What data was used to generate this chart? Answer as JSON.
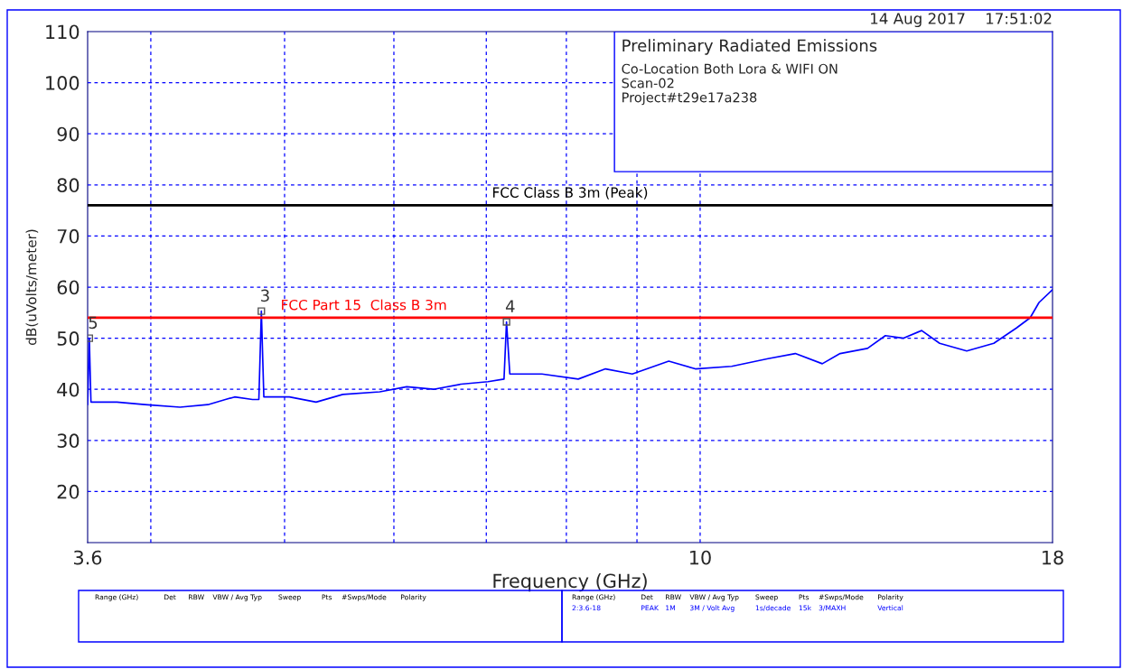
{
  "chart_data": {
    "type": "line",
    "xlabel": "Frequency (GHz)",
    "ylabel": "dB(uVolts/meter)",
    "x": [
      3.6,
      3.61,
      3.62,
      3.78,
      3.96,
      4.2,
      4.4,
      4.53,
      4.6,
      4.74,
      4.79,
      4.81,
      4.83,
      5.04,
      5.27,
      5.51,
      5.86,
      6.13,
      6.41,
      6.71,
      7.02,
      7.21,
      7.24,
      7.28,
      7.68,
      8.16,
      8.54,
      8.93,
      9.49,
      9.92,
      10.54,
      11.2,
      11.72,
      12.26,
      12.63,
      13.22,
      13.62,
      14.04,
      14.47,
      14.91,
      15.6,
      16.32,
      16.95,
      17.34,
      17.6,
      18
    ],
    "series": [
      {
        "color": "#0000ff",
        "values": [
          37,
          50,
          37.5,
          37.5,
          37,
          36.5,
          37,
          38,
          38.5,
          38,
          38,
          55.3,
          38.5,
          38.5,
          37.5,
          39,
          39.5,
          40.5,
          40,
          41,
          41.5,
          42,
          53.2,
          43,
          43,
          42,
          44,
          43,
          45.5,
          44,
          44.5,
          46,
          47,
          45,
          47,
          48,
          50.5,
          50,
          51.5,
          49,
          47.5,
          49,
          52,
          54,
          57,
          59.5
        ]
      }
    ],
    "log": "x",
    "xlim": [
      3.6,
      18
    ],
    "ylim": [
      10,
      110
    ],
    "xticks": [
      3.6,
      {
        "value": 4,
        "label": null
      },
      {
        "value": 5,
        "label": null
      },
      {
        "value": 6,
        "label": null
      },
      {
        "value": 7,
        "label": null
      },
      {
        "value": 8,
        "label": null
      },
      {
        "value": 9,
        "label": null
      },
      10,
      18
    ],
    "yticks": [
      20,
      30,
      40,
      50,
      60,
      70,
      80,
      90,
      100,
      110
    ],
    "grid": true,
    "marker": "none",
    "line_style": "solid",
    "ref_lines": [
      {
        "axis": "y",
        "value": 76,
        "label": "FCC Class B 3m (Peak)",
        "color": "#000000"
      },
      {
        "axis": "y",
        "value": 54,
        "label": "FCC Part 15  Class B 3m",
        "color": "#ff0000"
      }
    ],
    "annotations": [
      "14 Aug 2017    17:51:02",
      "Preliminary Radiated Emissions",
      "Co-Location Both Lora & WIFI ON",
      "Scan-02",
      "Project#t29e17a238",
      "Range (GHz)",
      "Det",
      "RBW",
      "VBW / Avg Typ",
      "Sweep",
      "Pts",
      "#Swps/Mode",
      "Polarity",
      "Range (GHz)",
      "Det",
      "RBW",
      "VBW / Avg Typ",
      "Sweep",
      "Pts",
      "#Swps/Mode",
      "Polarity",
      "2:3.6-18",
      "PEAK",
      "1M",
      "3M / Volt Avg",
      "1s/decade",
      "15k",
      "3/MAXH",
      "Vertical",
      {
        "text": "5",
        "x": 3.61,
        "y": 50
      },
      {
        "text": "3",
        "x": 4.81,
        "y": 55.3
      },
      {
        "text": "4",
        "x": 7.24,
        "y": 53.2
      }
    ]
  }
}
